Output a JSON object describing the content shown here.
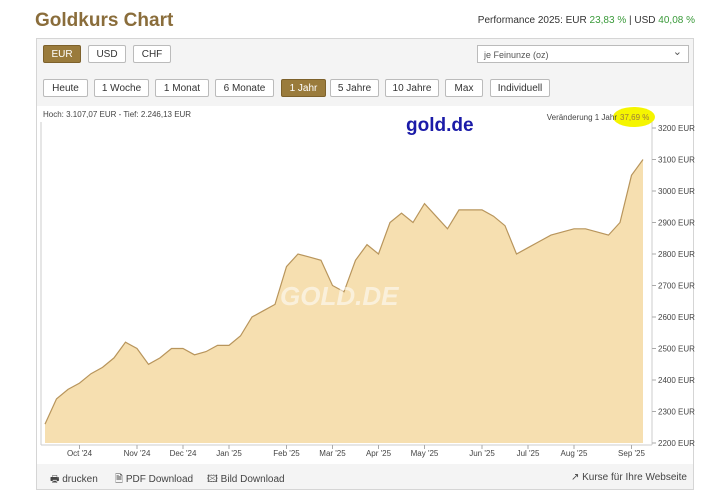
{
  "header": {
    "title": "Goldkurs Chart",
    "performance_label": "Performance 2025: EUR",
    "performance_eur": "23,83 %",
    "performance_sep": "| USD",
    "performance_usd": "40,08 %"
  },
  "controls": {
    "currencies": [
      "EUR",
      "USD",
      "CHF"
    ],
    "active_currency": 0,
    "unit": "je Feinunze (oz)",
    "ranges": [
      "Heute",
      "1 Woche",
      "1 Monat",
      "6 Monate",
      "1 Jahr",
      "5 Jahre",
      "10 Jahre",
      "Max",
      "Individuell"
    ],
    "active_range": 4
  },
  "chart_data": {
    "type": "area",
    "high_low": "Hoch: 3.107,07 EUR - Tief: 2.246,13 EUR",
    "brand": "gold.de",
    "watermark": "GOLD.DE",
    "change_label": "Veränderung 1 Jahr",
    "change_value": "37,69 %",
    "categories": [
      null,
      null,
      null,
      "Oct '24",
      null,
      null,
      null,
      null,
      "Nov '24",
      null,
      null,
      null,
      "Dec '24",
      null,
      null,
      null,
      "Jan '25",
      null,
      null,
      null,
      null,
      "Feb '25",
      null,
      null,
      null,
      "Mar '25",
      null,
      null,
      null,
      "Apr '25",
      null,
      null,
      null,
      "May '25",
      null,
      null,
      null,
      null,
      "Jun '25",
      null,
      null,
      null,
      "Jul '25",
      null,
      null,
      null,
      "Aug '25",
      null,
      null,
      null,
      null,
      "Sep '25",
      null
    ],
    "values": [
      2260,
      2340,
      2370,
      2390,
      2420,
      2440,
      2470,
      2520,
      2500,
      2450,
      2470,
      2500,
      2500,
      2480,
      2490,
      2510,
      2510,
      2540,
      2600,
      2620,
      2640,
      2760,
      2800,
      2790,
      2780,
      2700,
      2680,
      2780,
      2830,
      2800,
      2900,
      2930,
      2900,
      2960,
      2920,
      2880,
      2940,
      2940,
      2940,
      2920,
      2890,
      2800,
      2820,
      2840,
      2860,
      2870,
      2880,
      2880,
      2870,
      2860,
      2900,
      3050,
      3100
    ],
    "color": "#f6dfb0",
    "line_color": "#b8955c",
    "ylim": [
      2200,
      3200
    ],
    "yticks": [
      {
        "value": 2200,
        "label": "2200 EUR"
      },
      {
        "value": 2300,
        "label": "2300 EUR"
      },
      {
        "value": 2400,
        "label": "2400 EUR"
      },
      {
        "value": 2500,
        "label": "2500 EUR"
      },
      {
        "value": 2600,
        "label": "2600 EUR"
      },
      {
        "value": 2700,
        "label": "2700 EUR"
      },
      {
        "value": 2800,
        "label": "2800 EUR"
      },
      {
        "value": 2900,
        "label": "2900 EUR"
      },
      {
        "value": 3000,
        "label": "3000 EUR"
      },
      {
        "value": 3100,
        "label": "3100 EUR"
      },
      {
        "value": 3200,
        "label": "3200 EUR"
      }
    ],
    "grid": false
  },
  "footer": {
    "print": "drucken",
    "pdf": "PDF Download",
    "image": "Bild Download",
    "embed": "Kurse für Ihre Webseite"
  }
}
